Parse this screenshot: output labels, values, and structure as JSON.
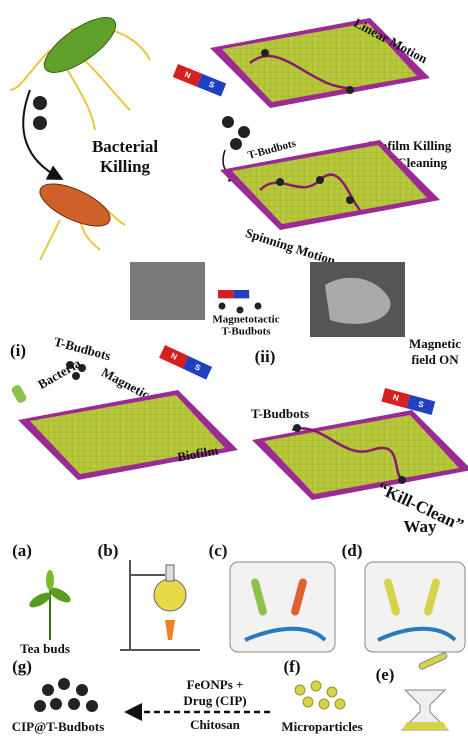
{
  "top": {
    "bacterial_killing": [
      "Bacterial",
      "Killing"
    ],
    "linear_motion": "Linear Motion",
    "t_budbots": "T-Budbots",
    "biofilm_killing": [
      "Biofilm Killing",
      "and Cleaning"
    ],
    "spinning_motion": "Spinning Motion",
    "magnet": [
      "N",
      "S"
    ]
  },
  "middle": {
    "magnetotactic": [
      "Magnetotactic",
      "T-Budbots"
    ],
    "panel_i": {
      "label": "(i)",
      "t_budbots": "T-Budbots",
      "bacteria": "Bacteria",
      "field": "Magnetic field OFF",
      "biofilm": "Biofilm"
    },
    "panel_ii": {
      "label": "(ii)",
      "t_budbots": "T-Budbots",
      "field": [
        "Magnetic",
        "field ON"
      ],
      "way": [
        "“Kill-Clean”",
        "Way"
      ]
    }
  },
  "bottom": {
    "a": "(a)",
    "b": "(b)",
    "c": "(c)",
    "d": "(d)",
    "e": "(e)",
    "f": "(f)",
    "g": "(g)",
    "tea_buds": "Tea buds",
    "reagents": [
      "FeONPs +",
      "Drug (CIP)"
    ],
    "chitosan": "Chitosan",
    "product": "CIP@T-Budbots",
    "microparticles": "Microparticles"
  }
}
